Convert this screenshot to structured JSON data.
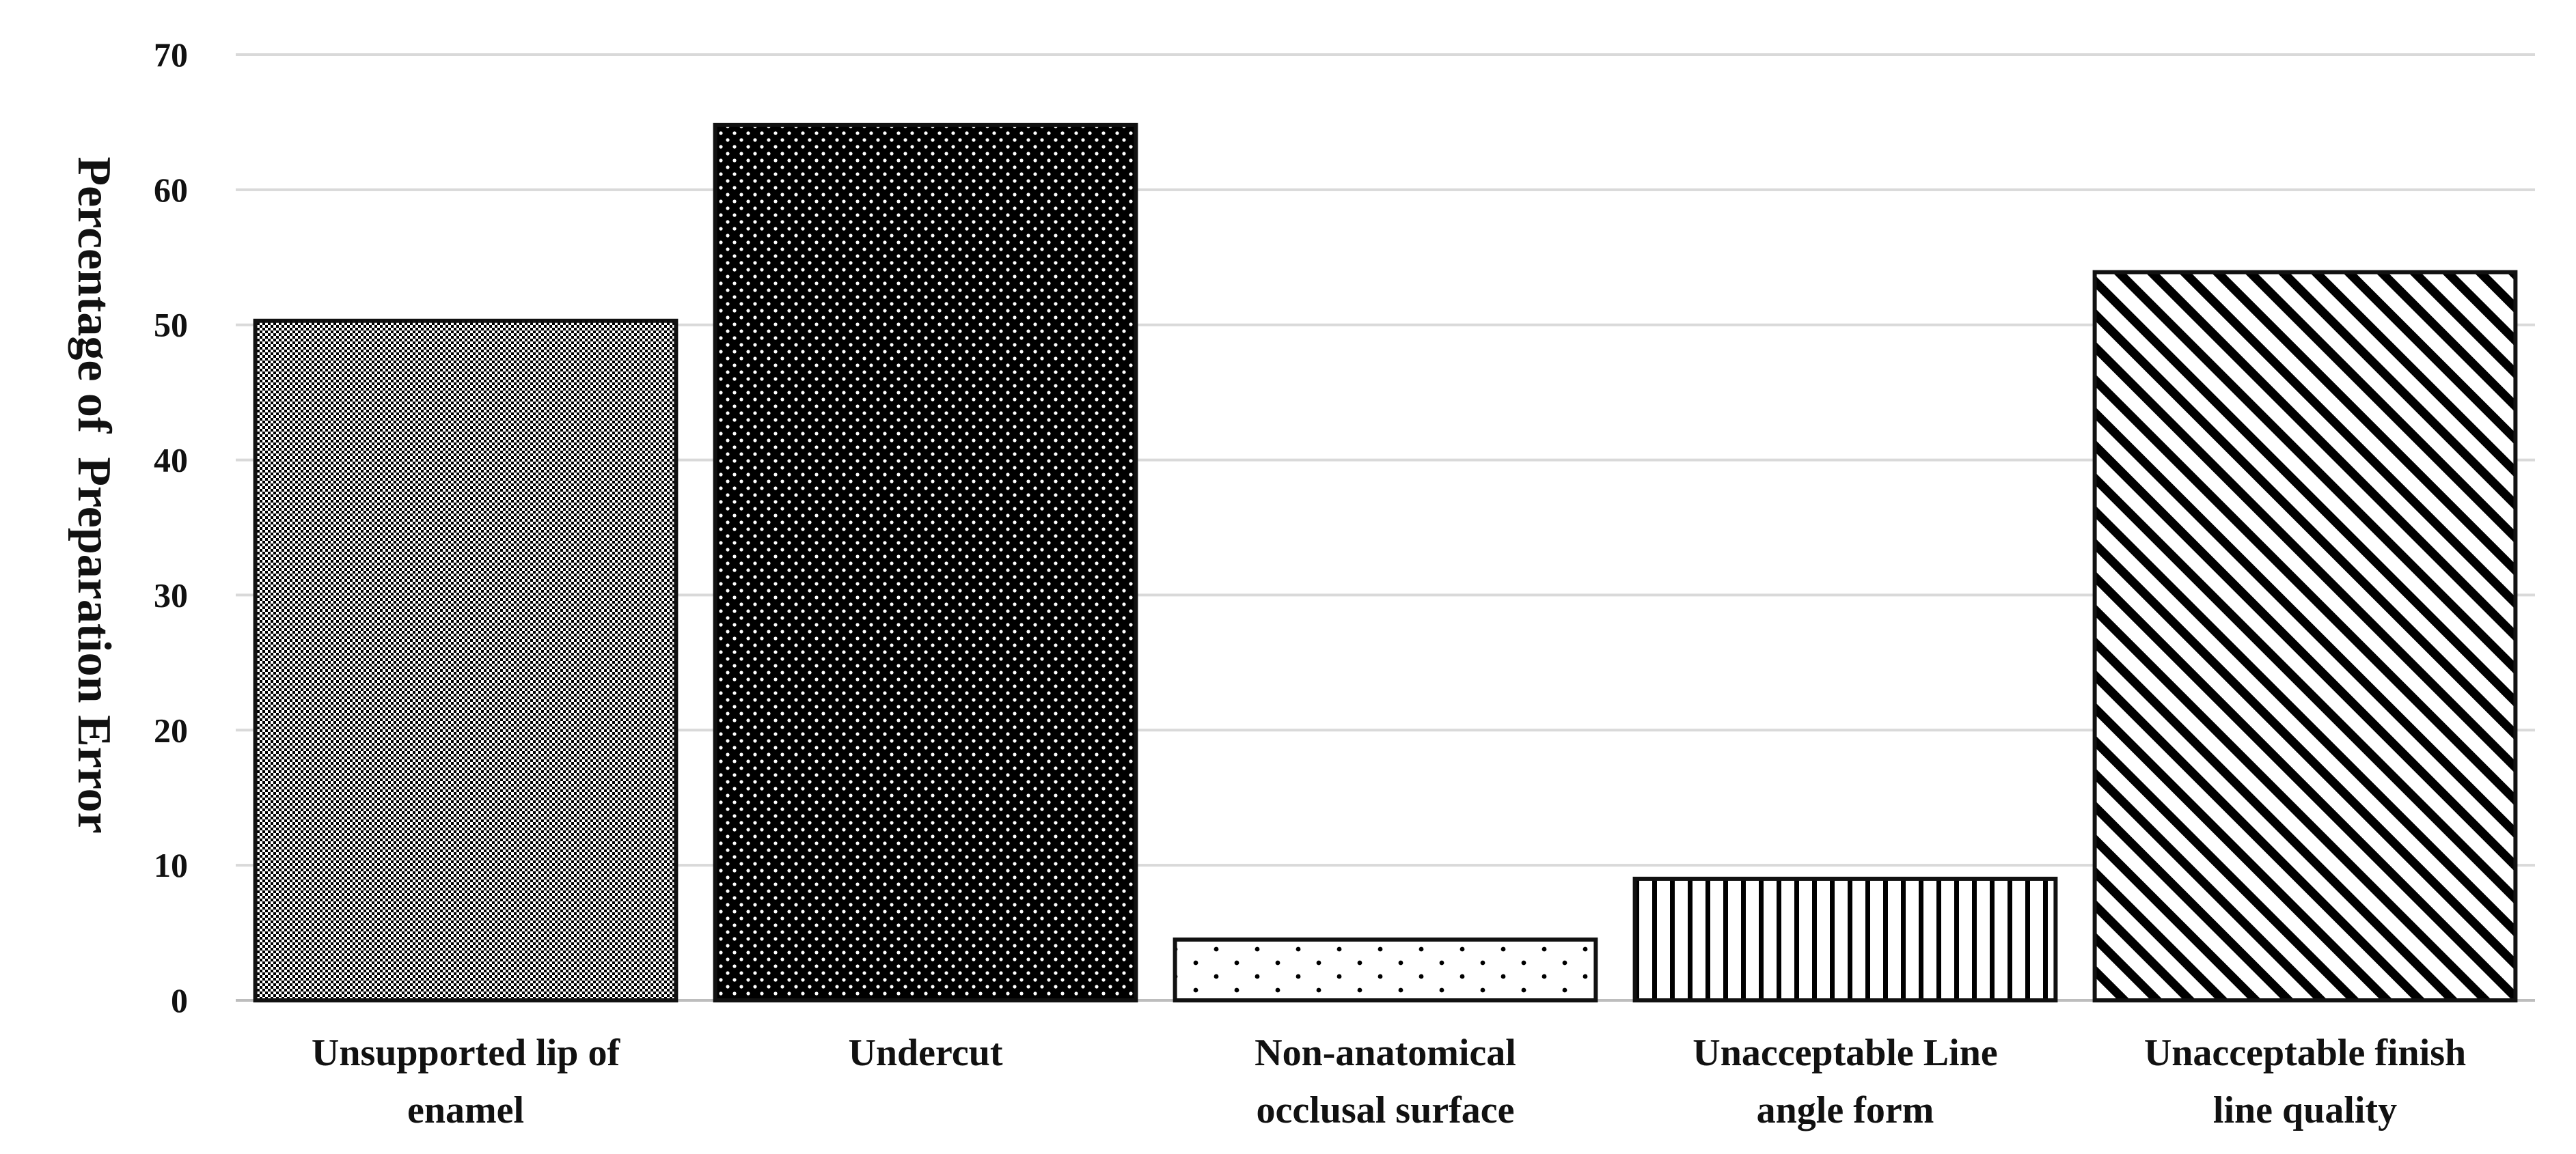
{
  "chart_data": {
    "type": "bar",
    "title": "",
    "xlabel": "",
    "ylabel": "Percentage of  Preparation Error",
    "ylim": [
      0,
      70
    ],
    "yticks": [
      0,
      10,
      20,
      30,
      40,
      50,
      60,
      70
    ],
    "grid": true,
    "legend": "none",
    "categories": [
      [
        "Unsupported lip of",
        "enamel"
      ],
      [
        "Undercut"
      ],
      [
        "Non-anatomical",
        "occlusal surface"
      ],
      [
        "Unacceptable Line",
        "angle form"
      ],
      [
        "Unacceptable finish",
        "line quality"
      ]
    ],
    "values": [
      50.3,
      64.8,
      4.5,
      9.0,
      53.9
    ],
    "patterns": [
      "fine-checker",
      "dense-dots",
      "sparse-dots",
      "vertical-lines",
      "diagonal-lines"
    ],
    "colors": {
      "bar_outline": "#111111",
      "gridline": "#d9d9d9",
      "text": "#111111",
      "fill_dark": "#000000",
      "fill_light": "#ffffff"
    }
  }
}
